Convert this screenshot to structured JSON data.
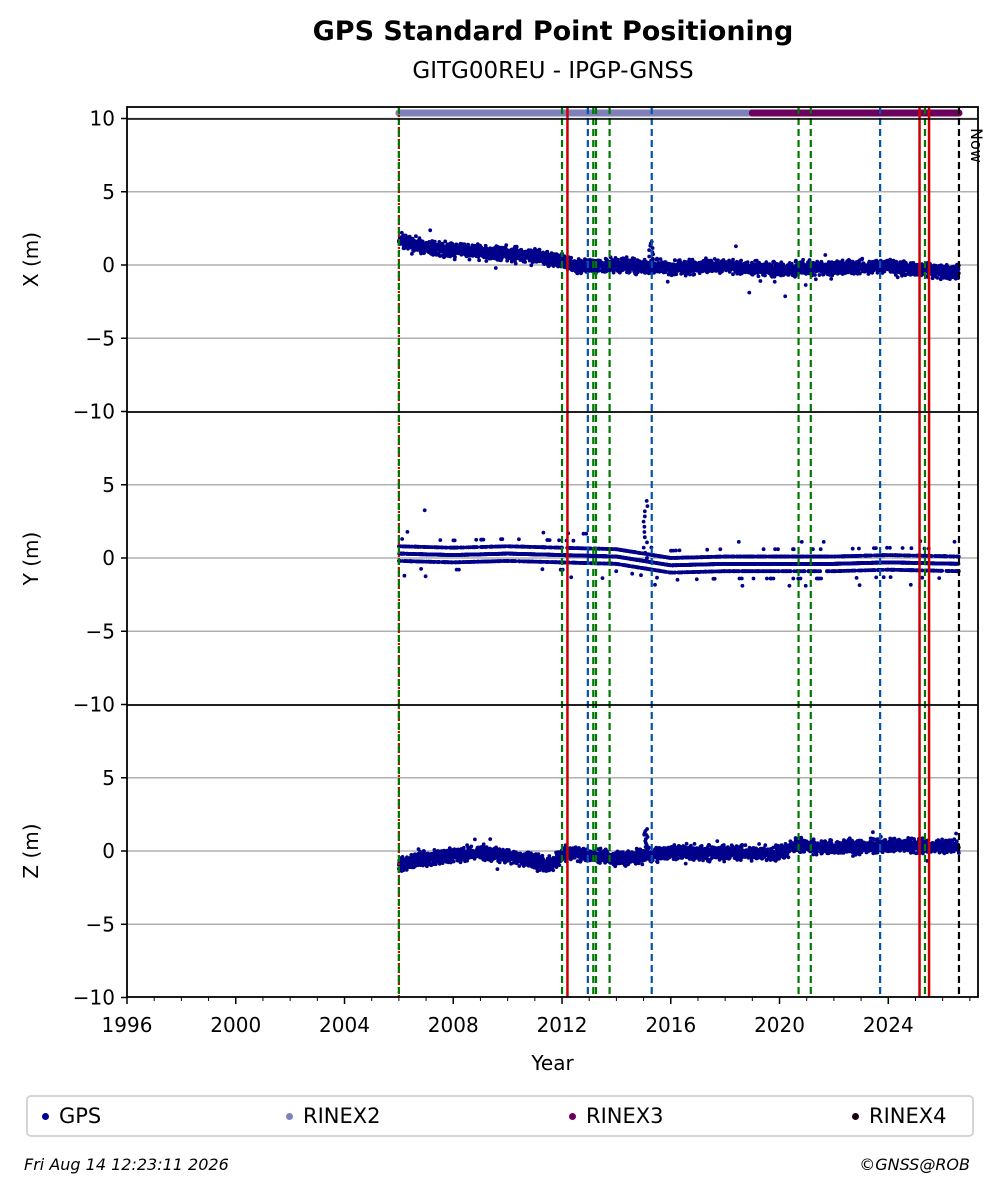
{
  "chart_data": {
    "type": "scatter",
    "title": "GPS Standard Point Positioning",
    "subtitle": "GITG00REU - IPGP-GNSS",
    "xlabel": "Year",
    "xlim": [
      1996,
      2027.3
    ],
    "xticks": [
      "1996",
      "2000",
      "2004",
      "2008",
      "2012",
      "2016",
      "2020",
      "2024"
    ],
    "ylim": [
      -10,
      10.8
    ],
    "yticks": [
      "−10",
      "−5",
      "0",
      "5",
      "10"
    ],
    "panels": [
      {
        "ylabel": "X (m)",
        "component": "X",
        "trend": [
          [
            2006.0,
            1.8
          ],
          [
            2007,
            1.2
          ],
          [
            2009,
            0.9
          ],
          [
            2011,
            0.6
          ],
          [
            2012.0,
            0.3
          ],
          [
            2012.5,
            -0.1
          ],
          [
            2014,
            0.0
          ],
          [
            2016,
            -0.2
          ],
          [
            2018,
            -0.1
          ],
          [
            2020,
            -0.3
          ],
          [
            2022,
            -0.2
          ],
          [
            2024,
            -0.1
          ],
          [
            2026.6,
            -0.5
          ]
        ],
        "spike": [
          2015.2,
          1.6
        ]
      },
      {
        "ylabel": "Y (m)",
        "component": "Y",
        "trend": [
          [
            2006.0,
            0.3
          ],
          [
            2008,
            0.2
          ],
          [
            2010,
            0.3
          ],
          [
            2012,
            0.2
          ],
          [
            2014,
            0.1
          ],
          [
            2016,
            -0.5
          ],
          [
            2018,
            -0.4
          ],
          [
            2020,
            -0.4
          ],
          [
            2022,
            -0.4
          ],
          [
            2024,
            -0.3
          ],
          [
            2026.6,
            -0.4
          ]
        ],
        "spike": [
          2015.0,
          3.9
        ]
      },
      {
        "ylabel": "Z (m)",
        "component": "Z",
        "trend": [
          [
            2006.0,
            -1.0
          ],
          [
            2007,
            -0.5
          ],
          [
            2009,
            -0.1
          ],
          [
            2011,
            -0.6
          ],
          [
            2011.5,
            -1.0
          ],
          [
            2012.2,
            -0.1
          ],
          [
            2014,
            -0.5
          ],
          [
            2016,
            -0.1
          ],
          [
            2018,
            -0.1
          ],
          [
            2020,
            -0.2
          ],
          [
            2020.6,
            0.4
          ],
          [
            2022,
            0.2
          ],
          [
            2024,
            0.4
          ],
          [
            2026.6,
            0.3
          ]
        ],
        "spike": [
          2015.0,
          1.5
        ]
      }
    ],
    "availability_bars": [
      {
        "series": "RINEX2",
        "start": 2006.0,
        "end": 2019.0,
        "color": "#8080b8"
      },
      {
        "series": "RINEX3",
        "start": 2019.0,
        "end": 2026.6,
        "color": "#6b005e"
      }
    ],
    "event_lines": [
      {
        "year": 2006.0,
        "color": "#cc0000",
        "style": "dotted"
      },
      {
        "year": 2006.0,
        "color": "#007700",
        "style": "dashed"
      },
      {
        "year": 2012.0,
        "color": "#007700",
        "style": "dashed"
      },
      {
        "year": 2012.2,
        "color": "#cc0000",
        "style": "solid"
      },
      {
        "year": 2012.95,
        "color": "#0055aa",
        "style": "dashed"
      },
      {
        "year": 2013.15,
        "color": "#007700",
        "style": "dashed"
      },
      {
        "year": 2013.25,
        "color": "#007700",
        "style": "dashed"
      },
      {
        "year": 2013.75,
        "color": "#007700",
        "style": "dashed"
      },
      {
        "year": 2015.3,
        "color": "#0055aa",
        "style": "dashed"
      },
      {
        "year": 2020.7,
        "color": "#007700",
        "style": "dashed"
      },
      {
        "year": 2021.15,
        "color": "#007700",
        "style": "dashed"
      },
      {
        "year": 2023.7,
        "color": "#0055aa",
        "style": "dashed"
      },
      {
        "year": 2025.15,
        "color": "#cc0000",
        "style": "solid"
      },
      {
        "year": 2025.35,
        "color": "#007700",
        "style": "dashed"
      },
      {
        "year": 2025.5,
        "color": "#cc0000",
        "style": "solid"
      },
      {
        "year": 2026.6,
        "color": "#000000",
        "style": "dashed"
      }
    ],
    "now_label": "Now",
    "now_year": 2026.6,
    "legend": [
      {
        "label": "GPS",
        "color": "#00008b"
      },
      {
        "label": "RINEX2",
        "color": "#8080b8"
      },
      {
        "label": "RINEX3",
        "color": "#6b005e"
      },
      {
        "label": "RINEX4",
        "color": "#1a0010"
      }
    ],
    "legend_position": "bottom",
    "grid": "horizontal"
  },
  "footer": {
    "timestamp": "Fri Aug 14 12:23:11 2026",
    "credit": "©GNSS@ROB"
  }
}
